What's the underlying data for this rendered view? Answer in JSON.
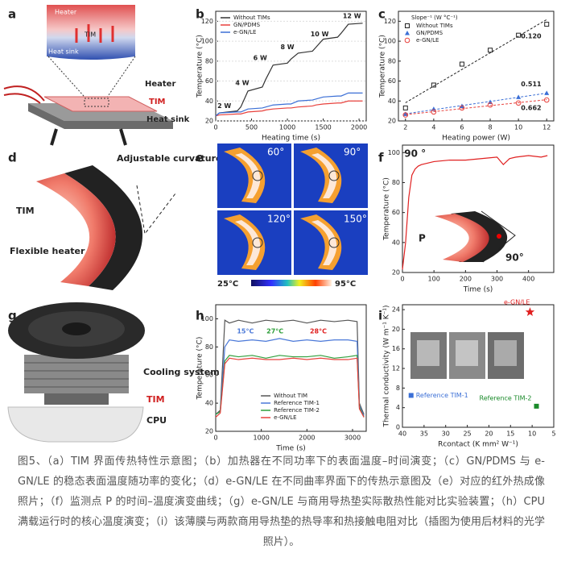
{
  "diagrams": {
    "a": {
      "panel": "a",
      "inset": [
        "Heater",
        "TIM",
        "Heat sink"
      ],
      "labels": [
        "Heater",
        "TIM",
        "Heat sink"
      ]
    },
    "d": {
      "panel": "d",
      "labels": [
        "Adjustable curvature",
        "TIM",
        "Flexible heater"
      ]
    },
    "e": {
      "panel": "e",
      "angles": [
        "60°",
        "90°",
        "120°",
        "150°"
      ],
      "scale": [
        "25°C",
        "95°C"
      ]
    },
    "f_inset": {
      "labels": [
        "P",
        "90°"
      ]
    },
    "g": {
      "panel": "g",
      "labels": [
        "Cooling system",
        "TIM",
        "CPU"
      ]
    }
  },
  "chart_data": [
    {
      "panel": "b",
      "type": "line",
      "xlabel": "Heating time (s)",
      "ylabel": "Temperature (°C)",
      "xlim": [
        0,
        2100
      ],
      "xticks": [
        0,
        500,
        1000,
        1500,
        2000
      ],
      "ylim": [
        20,
        130
      ],
      "yticks": [
        20,
        40,
        60,
        80,
        100,
        120
      ],
      "grid": true,
      "legend": "upper left",
      "x": [
        0,
        50,
        300,
        350,
        450,
        650,
        700,
        800,
        1000,
        1050,
        1150,
        1350,
        1400,
        1500,
        1700,
        1750,
        1850,
        2050
      ],
      "series": [
        {
          "name": "Without TIMs",
          "color": "#333333",
          "values": [
            25,
            28,
            30,
            34,
            50,
            54,
            62,
            76,
            78,
            82,
            88,
            90,
            94,
            102,
            104,
            108,
            117,
            118
          ]
        },
        {
          "name": "GN/PDMS",
          "color": "#e8413c",
          "values": [
            25,
            26,
            27,
            27,
            29,
            30,
            31,
            32,
            33,
            33,
            34,
            35,
            36,
            37,
            38,
            38,
            40,
            40
          ]
        },
        {
          "name": "e-GN/LE",
          "color": "#3b6fd6",
          "values": [
            25,
            28,
            29,
            29,
            32,
            33,
            34,
            36,
            37,
            37,
            40,
            41,
            42,
            44,
            45,
            45,
            48,
            48
          ]
        }
      ],
      "annotations": [
        {
          "text": "2 W",
          "x": 120,
          "y": 35
        },
        {
          "text": "4 W",
          "x": 370,
          "y": 58
        },
        {
          "text": "6 W",
          "x": 620,
          "y": 83
        },
        {
          "text": "8 W",
          "x": 1000,
          "y": 94
        },
        {
          "text": "10 W",
          "x": 1450,
          "y": 107
        },
        {
          "text": "12 W",
          "x": 1900,
          "y": 125
        }
      ]
    },
    {
      "panel": "c",
      "type": "scatter",
      "fit": true,
      "xlabel": "Heating power (W)",
      "ylabel": "Temperature (°C)",
      "xlim": [
        1.5,
        12.5
      ],
      "xticks": [
        2,
        4,
        6,
        8,
        10,
        12
      ],
      "ylim": [
        20,
        130
      ],
      "yticks": [
        20,
        40,
        60,
        80,
        100,
        120
      ],
      "legend": "upper left",
      "legend_title": "Slope⁻¹ (W °C⁻¹)",
      "x": [
        2,
        4,
        6,
        8,
        10,
        12
      ],
      "series": [
        {
          "name": "Without TIMs",
          "color": "#222222",
          "marker": "square",
          "values": [
            33,
            56,
            77,
            91,
            106,
            117
          ]
        },
        {
          "name": "GN/PDMS",
          "color": "#3b6fd6",
          "marker": "triangle",
          "values": [
            27,
            32,
            35,
            39,
            44,
            48
          ]
        },
        {
          "name": "e-GN/LE",
          "color": "#e8413c",
          "marker": "circle",
          "values": [
            26,
            29,
            33,
            36,
            38,
            41
          ]
        }
      ],
      "annotations": [
        {
          "text": "0.120",
          "x": 10.9,
          "y": 105
        },
        {
          "text": "0.511",
          "x": 10.9,
          "y": 57
        },
        {
          "text": "0.662",
          "x": 10.9,
          "y": 33
        }
      ]
    },
    {
      "panel": "f",
      "type": "line",
      "xlabel": "Time (s)",
      "ylabel": "Temperature (°C)",
      "xlim": [
        0,
        480
      ],
      "xticks": [
        0,
        100,
        200,
        300,
        400
      ],
      "ylim": [
        20,
        105
      ],
      "yticks": [
        20,
        40,
        60,
        80,
        100
      ],
      "x": [
        0,
        10,
        20,
        30,
        40,
        50,
        60,
        80,
        100,
        150,
        200,
        250,
        300,
        320,
        340,
        360,
        400,
        440,
        460
      ],
      "series": [
        {
          "name": "",
          "color": "#e02020",
          "values": [
            22,
            40,
            70,
            85,
            89,
            91,
            92,
            93,
            94,
            95,
            95,
            96,
            97,
            92,
            96,
            97,
            98,
            97,
            98
          ]
        }
      ],
      "annotations": [
        {
          "text": "90 °",
          "x": 40,
          "y": 99
        }
      ]
    },
    {
      "panel": "h",
      "type": "line",
      "xlabel": "Time (s)",
      "ylabel": "Temperature (°C)",
      "xlim": [
        0,
        3300
      ],
      "xticks": [
        0,
        1000,
        2000,
        3000
      ],
      "ylim": [
        20,
        110
      ],
      "yticks": [
        20,
        40,
        60,
        80,
        100
      ],
      "legend": "lower right",
      "x": [
        0,
        100,
        200,
        300,
        500,
        800,
        1100,
        1400,
        1700,
        2000,
        2300,
        2600,
        2900,
        3100,
        3150,
        3250
      ],
      "series": [
        {
          "name": "Without TIM",
          "color": "#555555",
          "values": [
            32,
            35,
            99,
            97,
            99,
            97,
            99,
            98,
            99,
            97,
            99,
            98,
            99,
            98,
            40,
            32
          ]
        },
        {
          "name": "Reference TIM-1",
          "color": "#4a78d8",
          "values": [
            32,
            34,
            80,
            85,
            84,
            85,
            84,
            86,
            84,
            85,
            84,
            85,
            85,
            84,
            38,
            31
          ]
        },
        {
          "name": "Reference TIM-2",
          "color": "#2e9e3a",
          "values": [
            32,
            34,
            70,
            74,
            73,
            74,
            72,
            74,
            73,
            73,
            74,
            72,
            73,
            74,
            37,
            30
          ]
        },
        {
          "name": "e-GN/LE",
          "color": "#e8413c",
          "values": [
            30,
            33,
            68,
            72,
            71,
            72,
            71,
            71,
            72,
            71,
            72,
            71,
            71,
            72,
            36,
            30
          ]
        }
      ],
      "annotations": [
        {
          "text": "15°C",
          "x": 650,
          "y": 91,
          "color": "#4a78d8"
        },
        {
          "text": "27°C",
          "x": 1300,
          "y": 91,
          "color": "#2e9e3a"
        },
        {
          "text": "28°C",
          "x": 2250,
          "y": 91,
          "color": "#e02020"
        }
      ]
    },
    {
      "panel": "i",
      "type": "scatter",
      "xlabel": "Rcontact (K mm² W⁻¹)",
      "ylabel": "Thermal conductivity (W m⁻¹ K⁻¹)",
      "xlim": [
        40,
        5
      ],
      "xticks": [
        40,
        35,
        30,
        25,
        20,
        15,
        10,
        5
      ],
      "ylim": [
        0,
        25
      ],
      "yticks": [
        0,
        4,
        8,
        12,
        16,
        20,
        24
      ],
      "series": [
        {
          "name": "Reference TIM-1",
          "color": "#3b6fd6",
          "marker": "square",
          "x": [
            38
          ],
          "values": [
            6.5
          ]
        },
        {
          "name": "Reference TIM-2",
          "color": "#1a8a2a",
          "marker": "square",
          "x": [
            9
          ],
          "values": [
            4.3
          ]
        },
        {
          "name": "e-GN/LE",
          "color": "#e02020",
          "marker": "star",
          "x": [
            10.5
          ],
          "values": [
            23.5
          ]
        }
      ]
    }
  ],
  "caption": "图5、（a）TIM 界面传热特性示意图；（b）加热器在不同功率下的表面温度–时间演变；（c）GN/PDMS 与 e-GN/LE 的稳态表面温度随功率的变化；（d）e-GN/LE 在不同曲率界面下的传热示意图及（e）对应的红外热成像照片；（f）监测点 P 的时间–温度演变曲线；（g）e-GN/LE 与商用导热垫实际散热性能对比实验装置；（h）CPU 满载运行时的核心温度演变；（i）该薄膜与两款商用导热垫的热导率和热接触电阻对比（插图为使用后材料的光学照片）。"
}
